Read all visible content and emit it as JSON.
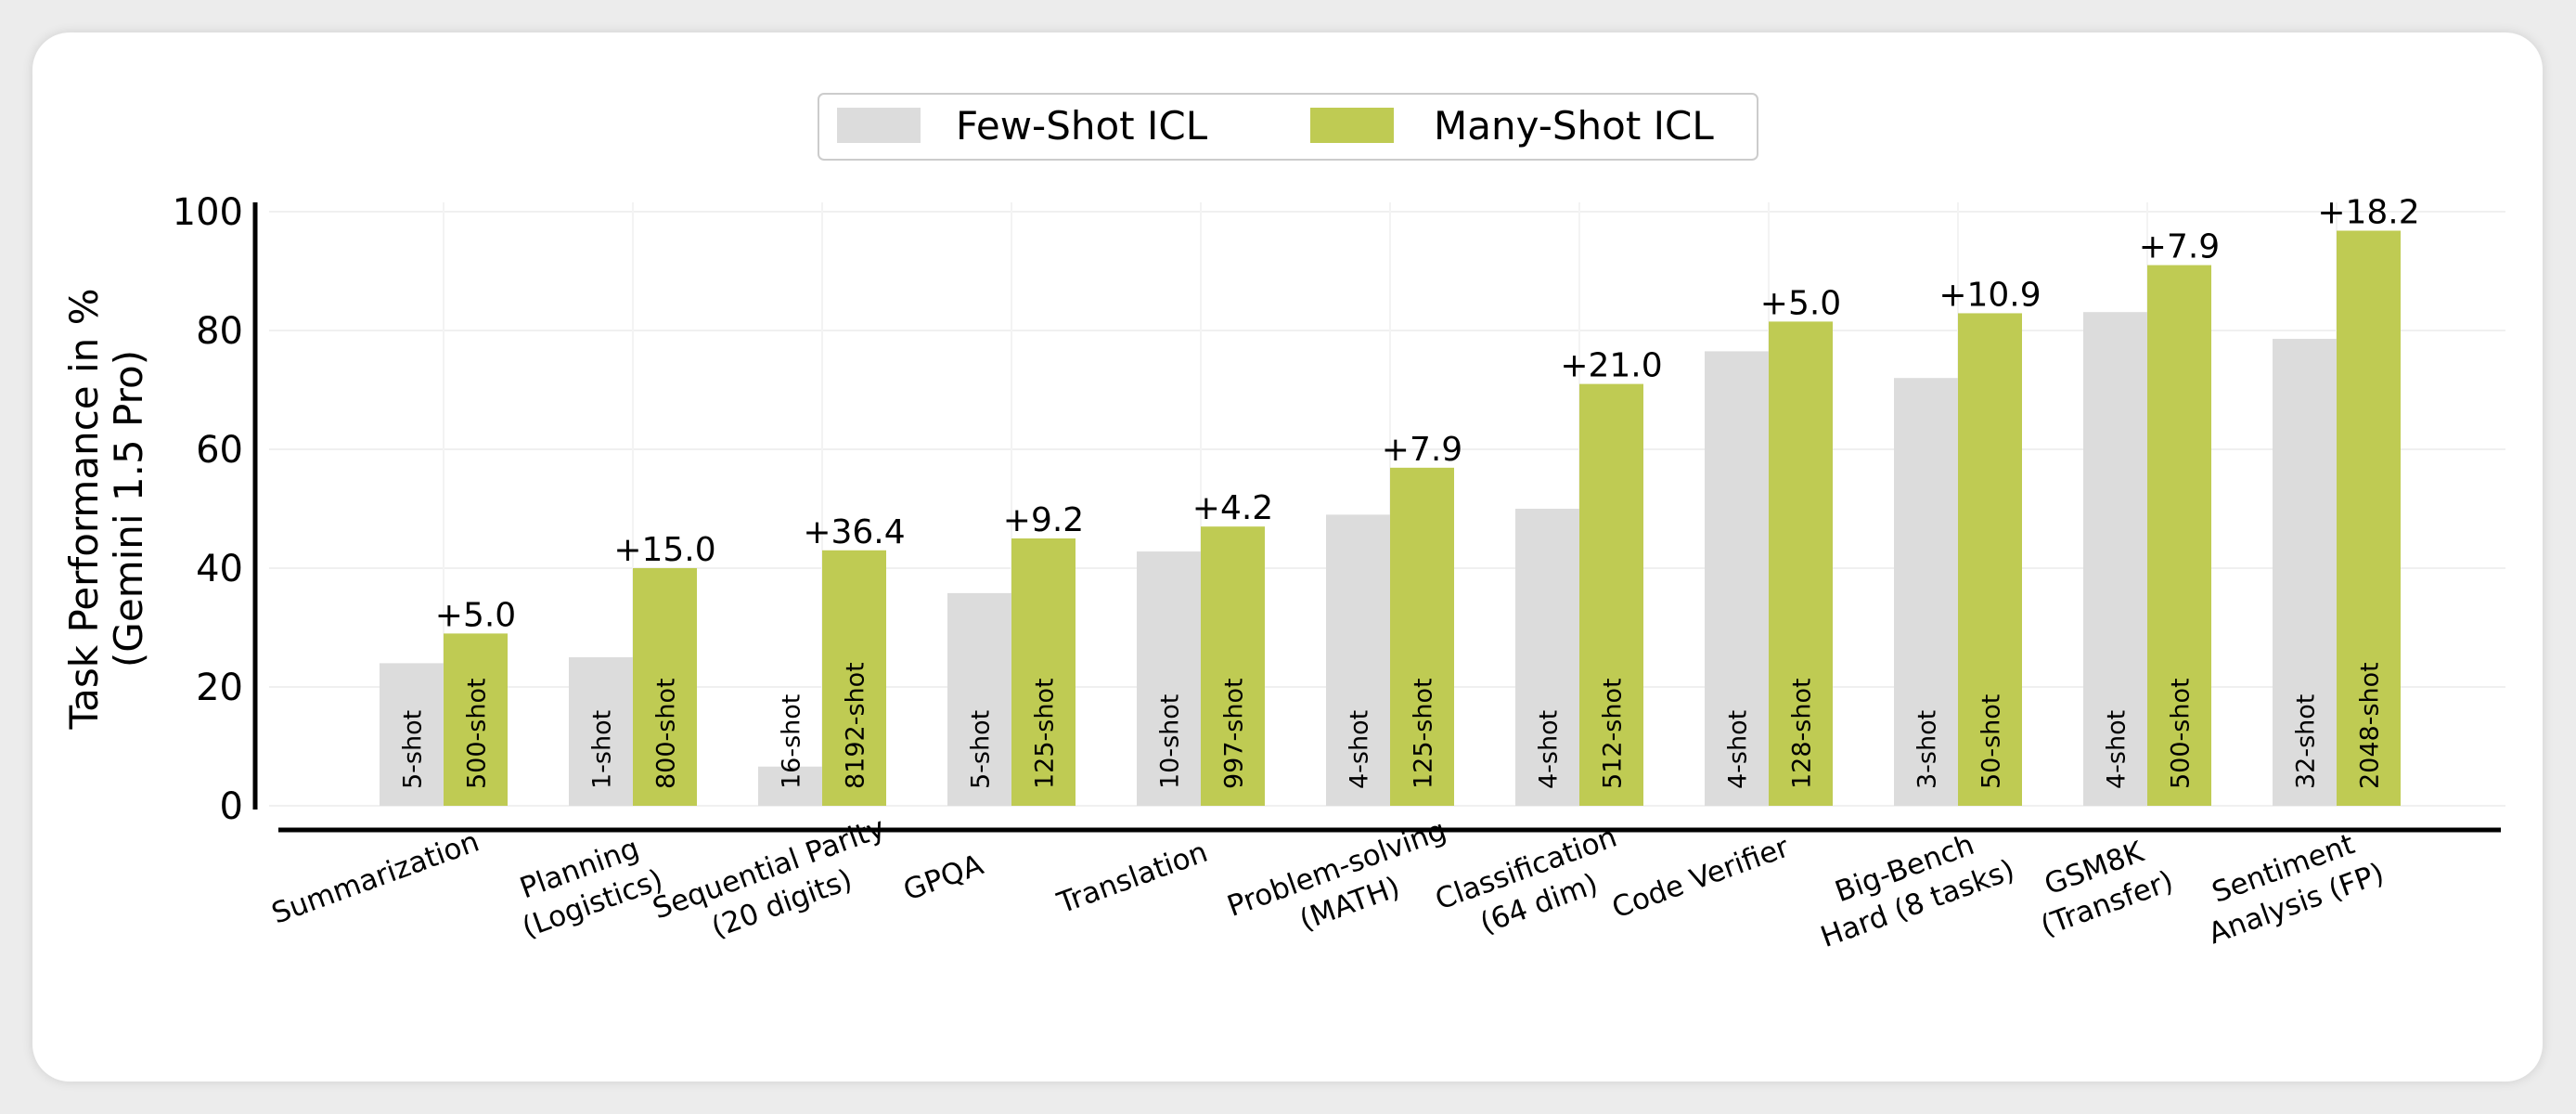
{
  "chart_data": {
    "type": "bar",
    "title": "",
    "xlabel": "",
    "ylabel": "Task Performance in %\n(Gemini 1.5 Pro)",
    "ylim": [
      0,
      100
    ],
    "yticks": [
      0,
      20,
      40,
      60,
      80,
      100
    ],
    "grid": true,
    "legend": {
      "placement": "top-center",
      "entries": [
        "Few-Shot ICL",
        "Many-Shot ICL"
      ]
    },
    "colors": {
      "few": "#dcdcdc",
      "many": "#bfcb53"
    },
    "categories": [
      "Summarization",
      "Planning\n(Logistics)",
      "Sequential Parity\n(20 digits)",
      "GPQA",
      "Translation",
      "Problem-solving\n(MATH)",
      "Classification\n(64 dim)",
      "Code Verifier",
      "Big-Bench\nHard (8 tasks)",
      "GSM8K\n(Transfer)",
      "Sentiment\nAnalysis (FP)"
    ],
    "series": [
      {
        "name": "Few-Shot ICL",
        "values": [
          24.0,
          25.0,
          6.6,
          35.8,
          42.8,
          49.0,
          50.0,
          76.5,
          72.0,
          83.1,
          78.6
        ],
        "bar_labels": [
          "5-shot",
          "1-shot",
          "16-shot",
          "5-shot",
          "10-shot",
          "4-shot",
          "4-shot",
          "4-shot",
          "3-shot",
          "4-shot",
          "32-shot"
        ]
      },
      {
        "name": "Many-Shot ICL",
        "values": [
          29.0,
          40.0,
          43.0,
          45.0,
          47.0,
          56.9,
          71.0,
          81.5,
          82.9,
          91.0,
          96.8
        ],
        "bar_labels": [
          "500-shot",
          "800-shot",
          "8192-shot",
          "125-shot",
          "997-shot",
          "125-shot",
          "512-shot",
          "128-shot",
          "50-shot",
          "500-shot",
          "2048-shot"
        ]
      }
    ],
    "annotations": [
      "+5.0",
      "+15.0",
      "+36.4",
      "+9.2",
      "+4.2",
      "+7.9",
      "+21.0",
      "+5.0",
      "+10.9",
      "+7.9",
      "+18.2"
    ]
  }
}
